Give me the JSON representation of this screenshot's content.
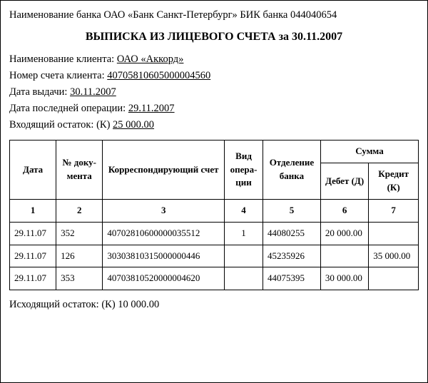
{
  "bank": {
    "label": "Наименование банка",
    "name": "ОАО «Банк Санкт-Петербург»",
    "bik_label": "БИК банка",
    "bik": "044040654"
  },
  "title": "ВЫПИСКА ИЗ ЛИЦЕВОГО СЧЕТА за 30.11.2007",
  "client": {
    "name_label": "Наименование клиента:",
    "name": "ОАО «Аккорд»",
    "account_label": "Номер счета клиента:",
    "account": "40705810605000004560",
    "issue_date_label": "Дата выдачи:",
    "issue_date": "30.11.2007",
    "last_op_label": "Дата последней операции:",
    "last_op_date": "29.11.2007",
    "incoming_label": "Входящий остаток: (К)",
    "incoming_balance": "25 000.00"
  },
  "table": {
    "headers": {
      "date": "Дата",
      "doc_no": "№ доку­мента",
      "corr_account": "Корреспондирующий счет",
      "op_type": "Вид опера­ции",
      "branch": "Отделение банка",
      "amount_group": "Сумма",
      "debit": "Дебет (Д)",
      "credit": "Кредит (К)"
    },
    "col_numbers": [
      "1",
      "2",
      "3",
      "4",
      "5",
      "6",
      "7"
    ],
    "rows": [
      {
        "date": "29.11.07",
        "doc": "352",
        "corr": "40702810600000035512",
        "op": "1",
        "branch": "44080255",
        "debit": "20 000.00",
        "credit": ""
      },
      {
        "date": "29.11.07",
        "doc": "126",
        "corr": "30303810315000000446",
        "op": "",
        "branch": "45235926",
        "debit": "",
        "credit": "35 000.00"
      },
      {
        "date": "29.11.07",
        "doc": "353",
        "corr": "40703810520000004620",
        "op": "",
        "branch": "44075395",
        "debit": "30 000.00",
        "credit": ""
      }
    ]
  },
  "footer": {
    "outgoing_label": "Исходящий остаток: (К)",
    "outgoing_balance": "10 000.00"
  }
}
